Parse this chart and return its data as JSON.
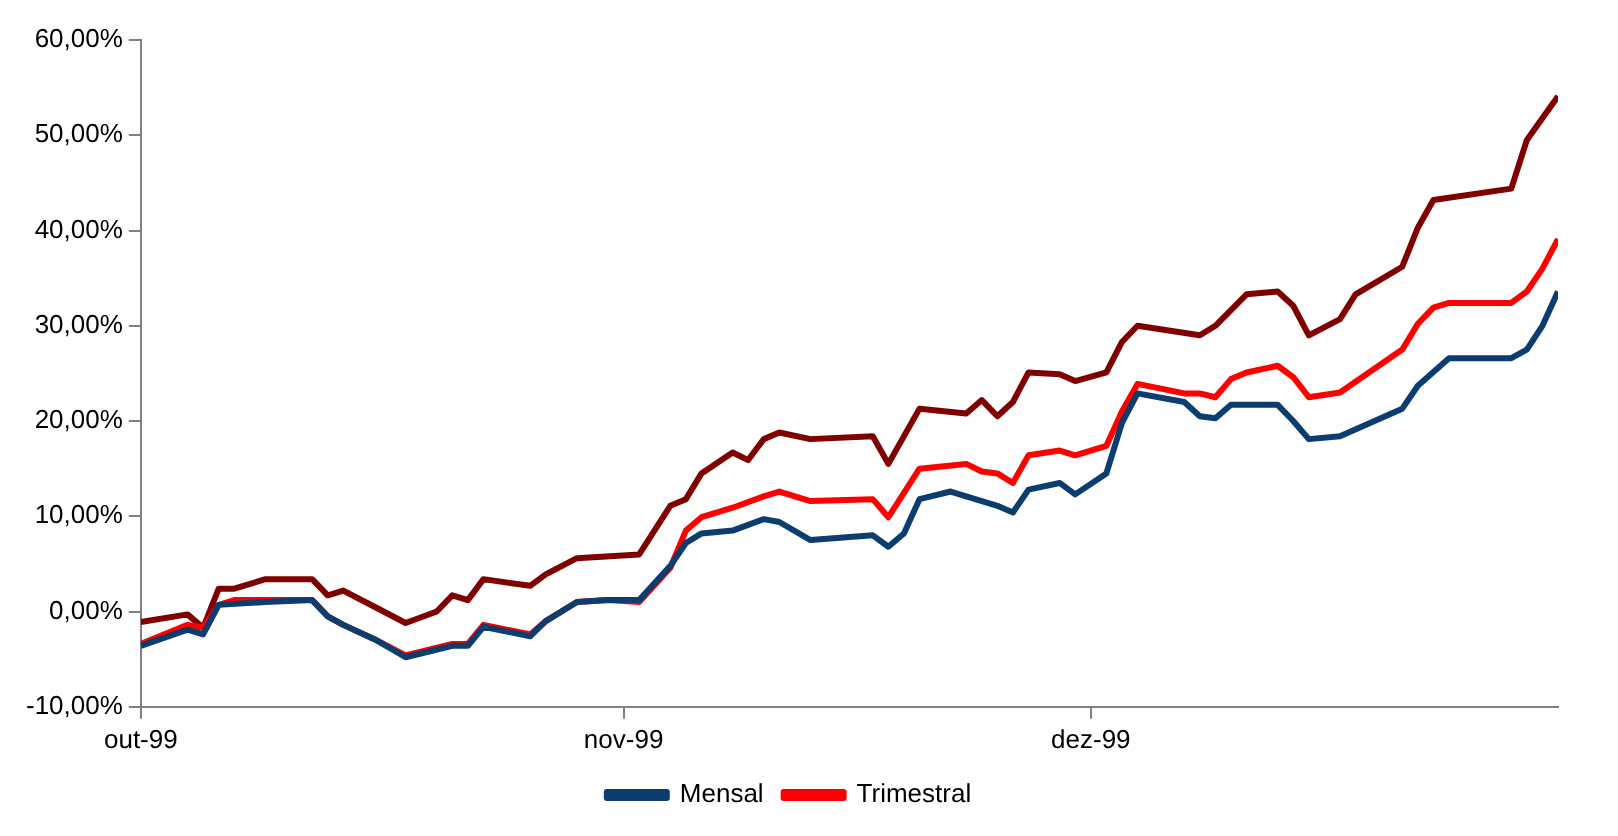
{
  "chart_data": {
    "type": "line",
    "xlim": [
      "1999-10-01",
      "1999-12-31"
    ],
    "xticks": [
      {
        "value": "1999-10-01",
        "label": "out-99"
      },
      {
        "value": "1999-11-01",
        "label": "nov-99"
      },
      {
        "value": "1999-12-01",
        "label": "dez-99"
      }
    ],
    "ylim": [
      -10,
      60
    ],
    "yticks": [
      {
        "value": -10,
        "label": "-10,00%"
      },
      {
        "value": 0,
        "label": "0,00%"
      },
      {
        "value": 10,
        "label": "10,00%"
      },
      {
        "value": 20,
        "label": "20,00%"
      },
      {
        "value": 30,
        "label": "30,00%"
      },
      {
        "value": 40,
        "label": "40,00%"
      },
      {
        "value": 50,
        "label": "50,00%"
      },
      {
        "value": 60,
        "label": "60,00%"
      }
    ],
    "grid": false,
    "legend": "bottom",
    "marker": "none",
    "line_style": "solid",
    "series": [
      {
        "name": "Mensal",
        "color": "#0b3d6e",
        "x": [
          "1999-10-01",
          "1999-10-04",
          "1999-10-05",
          "1999-10-06",
          "1999-10-09",
          "1999-10-12",
          "1999-10-13",
          "1999-10-14",
          "1999-10-16",
          "1999-10-18",
          "1999-10-21",
          "1999-10-22",
          "1999-10-23",
          "1999-10-26",
          "1999-10-27",
          "1999-10-29",
          "1999-10-31",
          "1999-11-02",
          "1999-11-04",
          "1999-11-05",
          "1999-11-06",
          "1999-11-08",
          "1999-11-10",
          "1999-11-11",
          "1999-11-13",
          "1999-11-17",
          "1999-11-18",
          "1999-11-19",
          "1999-11-20",
          "1999-11-22",
          "1999-11-25",
          "1999-11-26",
          "1999-11-27",
          "1999-11-29",
          "1999-11-30",
          "1999-12-02",
          "1999-12-03",
          "1999-12-04",
          "1999-12-07",
          "1999-12-08",
          "1999-12-09",
          "1999-12-10",
          "1999-12-13",
          "1999-12-14",
          "1999-12-15",
          "1999-12-17",
          "1999-12-21",
          "1999-12-22",
          "1999-12-24",
          "1999-12-28",
          "1999-12-29",
          "1999-12-30",
          "1999-12-31"
        ],
        "values": [
          -3.6,
          -1.9,
          -2.4,
          0.7,
          1.0,
          1.2,
          -0.5,
          -1.4,
          -2.9,
          -4.8,
          -3.6,
          -3.6,
          -1.6,
          -2.6,
          -1.0,
          1.0,
          1.2,
          1.2,
          4.8,
          7.2,
          8.2,
          8.5,
          9.7,
          9.4,
          7.5,
          8.0,
          6.8,
          8.2,
          11.8,
          12.6,
          11.1,
          10.4,
          12.8,
          13.5,
          12.3,
          14.5,
          19.8,
          22.9,
          22.0,
          20.5,
          20.3,
          21.7,
          21.7,
          20.0,
          18.1,
          18.4,
          21.3,
          23.7,
          26.6,
          26.6,
          27.5,
          30.0,
          33.6
        ]
      },
      {
        "name": "Trimestral",
        "color": "#ff0000",
        "x": [
          "1999-10-01",
          "1999-10-04",
          "1999-10-05",
          "1999-10-06",
          "1999-10-07",
          "1999-10-12",
          "1999-10-13",
          "1999-10-14",
          "1999-10-16",
          "1999-10-18",
          "1999-10-21",
          "1999-10-22",
          "1999-10-23",
          "1999-10-26",
          "1999-10-27",
          "1999-10-29",
          "1999-10-31",
          "1999-11-02",
          "1999-11-04",
          "1999-11-05",
          "1999-11-06",
          "1999-11-08",
          "1999-11-10",
          "1999-11-11",
          "1999-11-13",
          "1999-11-17",
          "1999-11-18",
          "1999-11-20",
          "1999-11-23",
          "1999-11-24",
          "1999-11-25",
          "1999-11-26",
          "1999-11-27",
          "1999-11-29",
          "1999-11-30",
          "1999-12-02",
          "1999-12-03",
          "1999-12-04",
          "1999-12-07",
          "1999-12-08",
          "1999-12-09",
          "1999-12-10",
          "1999-12-11",
          "1999-12-13",
          "1999-12-14",
          "1999-12-15",
          "1999-12-17",
          "1999-12-21",
          "1999-12-22",
          "1999-12-23",
          "1999-12-24",
          "1999-12-28",
          "1999-12-29",
          "1999-12-30",
          "1999-12-31"
        ],
        "values": [
          -3.4,
          -1.4,
          -1.7,
          0.7,
          1.2,
          1.2,
          -0.5,
          -1.4,
          -2.9,
          -4.6,
          -3.4,
          -3.4,
          -1.4,
          -2.4,
          -1.0,
          1.0,
          1.2,
          1.0,
          4.6,
          8.5,
          9.9,
          10.9,
          12.1,
          12.6,
          11.6,
          11.8,
          9.9,
          15.0,
          15.5,
          14.7,
          14.5,
          13.5,
          16.4,
          16.9,
          16.4,
          17.4,
          21.0,
          23.9,
          22.9,
          22.9,
          22.5,
          24.4,
          25.1,
          25.8,
          24.6,
          22.5,
          23.0,
          27.5,
          30.2,
          31.9,
          32.4,
          32.4,
          33.6,
          36.0,
          39.1
        ]
      },
      {
        "color": "#800000",
        "x": [
          "1999-10-01",
          "1999-10-04",
          "1999-10-05",
          "1999-10-06",
          "1999-10-07",
          "1999-10-09",
          "1999-10-12",
          "1999-10-13",
          "1999-10-14",
          "1999-10-16",
          "1999-10-18",
          "1999-10-20",
          "1999-10-21",
          "1999-10-22",
          "1999-10-23",
          "1999-10-26",
          "1999-10-27",
          "1999-10-29",
          "1999-11-02",
          "1999-11-04",
          "1999-11-05",
          "1999-11-06",
          "1999-11-08",
          "1999-11-09",
          "1999-11-10",
          "1999-11-11",
          "1999-11-13",
          "1999-11-17",
          "1999-11-18",
          "1999-11-20",
          "1999-11-23",
          "1999-11-24",
          "1999-11-25",
          "1999-11-26",
          "1999-11-27",
          "1999-11-29",
          "1999-11-30",
          "1999-12-02",
          "1999-12-03",
          "1999-12-04",
          "1999-12-08",
          "1999-12-09",
          "1999-12-11",
          "1999-12-13",
          "1999-12-14",
          "1999-12-15",
          "1999-12-17",
          "1999-12-18",
          "1999-12-21",
          "1999-12-22",
          "1999-12-23",
          "1999-12-28",
          "1999-12-29",
          "1999-12-31"
        ],
        "values": [
          -1.1,
          -0.3,
          -1.7,
          2.4,
          2.4,
          3.4,
          3.4,
          1.7,
          2.2,
          0.5,
          -1.2,
          0,
          1.7,
          1.2,
          3.4,
          2.7,
          3.9,
          5.6,
          6.0,
          11.1,
          11.8,
          14.5,
          16.7,
          15.9,
          18.1,
          18.8,
          18.1,
          18.4,
          15.5,
          21.3,
          20.8,
          22.2,
          20.5,
          22.0,
          25.1,
          24.9,
          24.2,
          25.1,
          28.3,
          30.0,
          29.0,
          30.0,
          33.3,
          33.6,
          32.1,
          29.0,
          30.7,
          33.3,
          36.2,
          40.3,
          43.2,
          44.4,
          49.5,
          54.1
        ]
      }
    ]
  }
}
